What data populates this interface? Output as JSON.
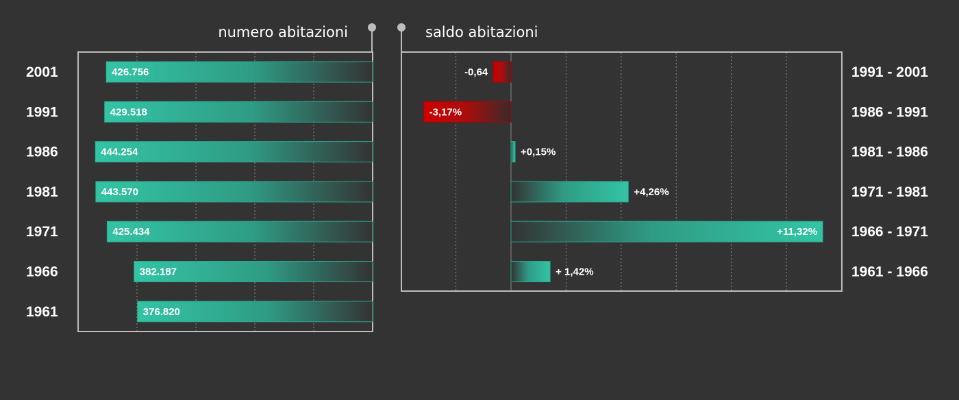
{
  "colors": {
    "background": "#333333",
    "positive_bar": "#33c4a5",
    "negative_bar": "#cc0000",
    "frame": "#bdbdbd",
    "grid": "#8a8a8a",
    "text": "#ffffff"
  },
  "chart_data": [
    {
      "type": "bar",
      "orientation": "horizontal",
      "title": "numero abitazioni",
      "categories": [
        "2001",
        "1991",
        "1986",
        "1981",
        "1971",
        "1966",
        "1961"
      ],
      "values": [
        426756,
        429518,
        444254,
        443570,
        425434,
        382187,
        376820
      ],
      "value_labels": [
        "426.756",
        "429.518",
        "444.254",
        "443.570",
        "425.434",
        "382.187",
        "376.820"
      ],
      "xlim": [
        0,
        450000
      ],
      "bar_direction": "right-to-left",
      "grid": true
    },
    {
      "type": "bar",
      "orientation": "horizontal",
      "title": "saldo abitazioni",
      "categories": [
        "1991 - 2001",
        "1986 - 1991",
        "1981 - 1986",
        "1971 - 1981",
        "1966 - 1971",
        "1961 - 1966"
      ],
      "values": [
        -0.64,
        -3.17,
        0.15,
        4.26,
        11.32,
        1.42
      ],
      "value_labels": [
        "-0,64",
        "-3,17%",
        "+0,15%",
        "+4,26%",
        "+11,32%",
        "+ 1,42%"
      ],
      "unit": "%",
      "xlim": [
        -4,
        12
      ],
      "grid": true
    }
  ]
}
